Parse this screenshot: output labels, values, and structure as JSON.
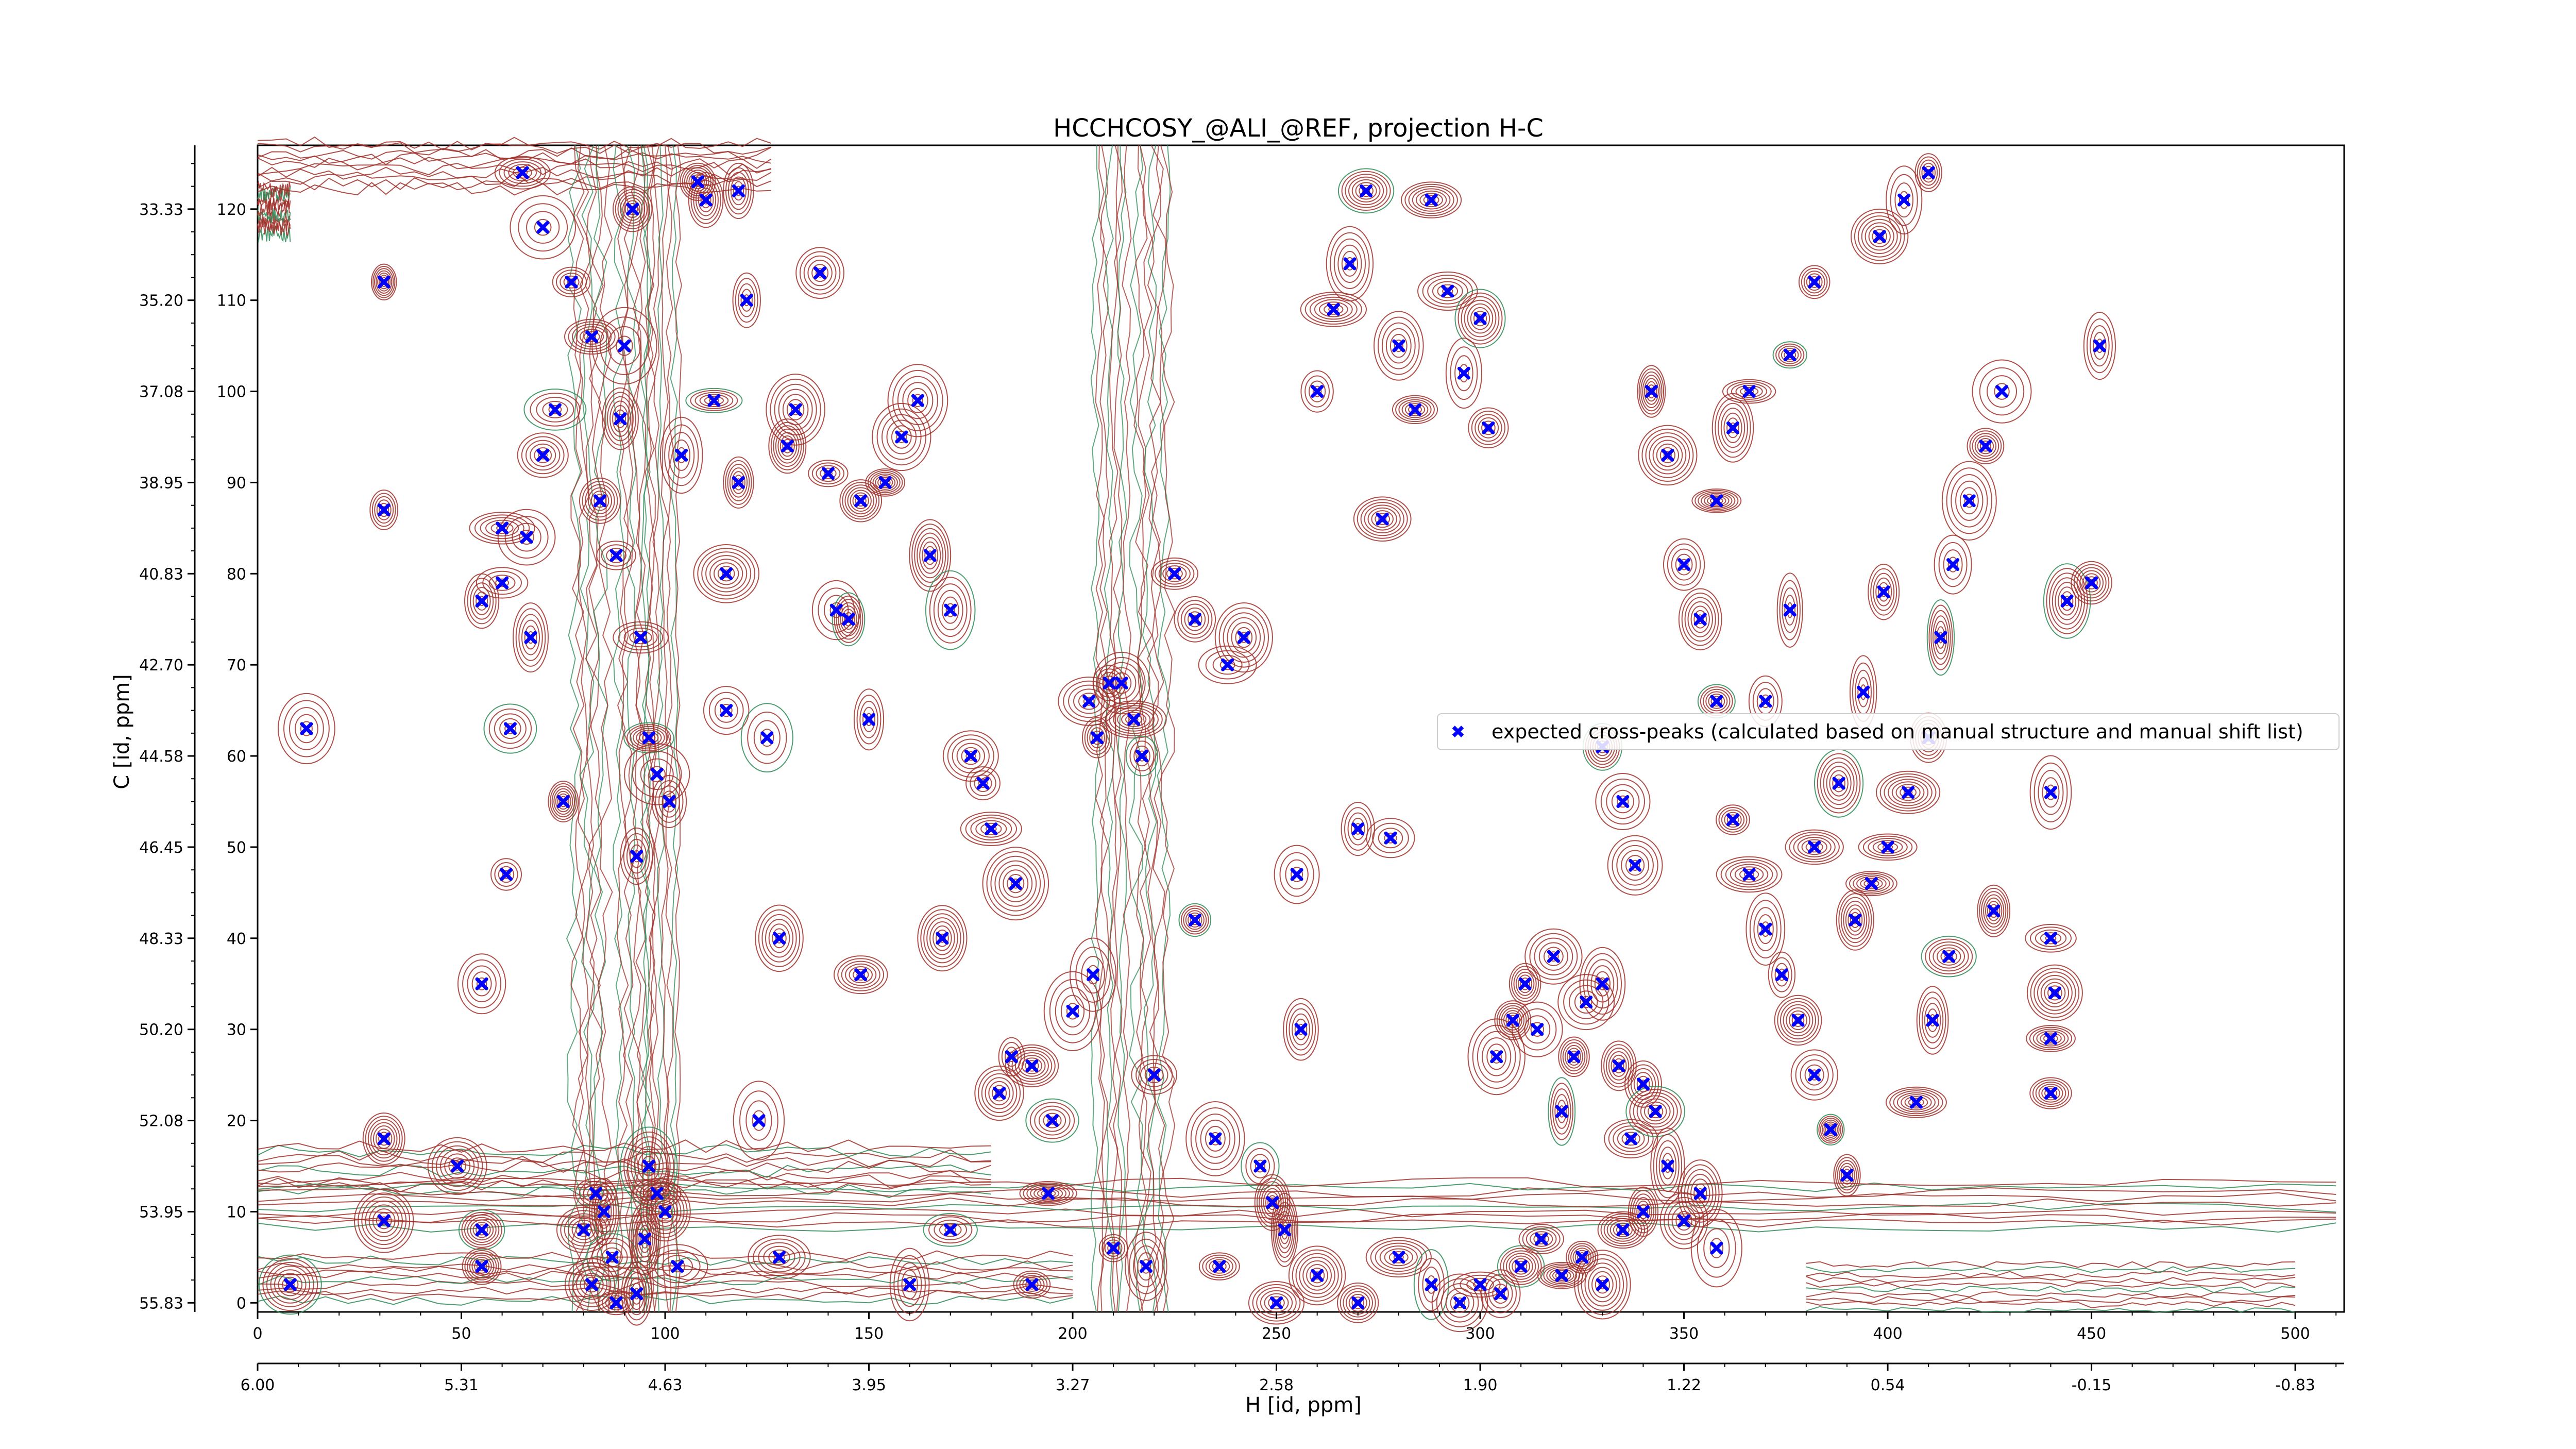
{
  "chart_data": {
    "type": "scatter",
    "title": "HCCHCOSY_@ALI_@REF, projection H-C",
    "xlabel": "H [id, ppm]",
    "ylabel": "C [id, ppm]",
    "xlim": [
      0,
      512
    ],
    "ylim": [
      -1,
      127
    ],
    "x_ticks": [
      0,
      50,
      100,
      150,
      200,
      250,
      300,
      350,
      400,
      450,
      500
    ],
    "x_tick_labels": [
      "0",
      "50",
      "100",
      "150",
      "200",
      "250",
      "300",
      "350",
      "400",
      "450",
      "500"
    ],
    "x2_ticks": [
      0,
      28,
      56,
      84,
      112,
      140,
      168,
      196,
      224,
      252,
      280
    ],
    "x2_tick_labels": [
      "6.00",
      "5.31",
      "4.63",
      "3.95",
      "3.27",
      "2.58",
      "1.90",
      "1.22",
      "0.54",
      "-0.15",
      "-0.83"
    ],
    "x2_tick_positions": [
      0,
      50,
      100,
      150,
      200,
      250,
      300,
      350,
      400,
      450,
      500
    ],
    "y_ticks": [
      0,
      10,
      20,
      30,
      40,
      50,
      60,
      70,
      80,
      90,
      100,
      110,
      120
    ],
    "y_tick_labels": [
      "0",
      "10",
      "20",
      "30",
      "40",
      "50",
      "60",
      "70",
      "80",
      "90",
      "100",
      "110",
      "120"
    ],
    "y2_tick_labels": [
      "55.83",
      "53.95",
      "52.08",
      "50.20",
      "48.33",
      "46.45",
      "44.58",
      "42.70",
      "40.83",
      "38.95",
      "37.08",
      "35.20",
      "33.33"
    ],
    "y2_tick_positions": [
      0,
      10,
      20,
      30,
      40,
      50,
      60,
      70,
      80,
      90,
      100,
      110,
      120
    ],
    "grid": false,
    "legend_position": "center-right",
    "series": [
      {
        "name": "expected cross-peaks (calculated based on manual structure and manual shift list)",
        "color": "#0000ff",
        "marker": "x",
        "points": [
          [
            8,
            2
          ],
          [
            12,
            63
          ],
          [
            31,
            112
          ],
          [
            31,
            87
          ],
          [
            31,
            18
          ],
          [
            31,
            9
          ],
          [
            49,
            15
          ],
          [
            55,
            8
          ],
          [
            55,
            4
          ],
          [
            55,
            77
          ],
          [
            61,
            47
          ],
          [
            55,
            35
          ],
          [
            60,
            85
          ],
          [
            60,
            79
          ],
          [
            62,
            63
          ],
          [
            65,
            124
          ],
          [
            70,
            118
          ],
          [
            75,
            55
          ],
          [
            66,
            84
          ],
          [
            70,
            93
          ],
          [
            67,
            73
          ],
          [
            73,
            98
          ],
          [
            77,
            112
          ],
          [
            84,
            88
          ],
          [
            82,
            106
          ],
          [
            83,
            12
          ],
          [
            80,
            8
          ],
          [
            85,
            10
          ],
          [
            87,
            5
          ],
          [
            82,
            2
          ],
          [
            89,
            97
          ],
          [
            90,
            105
          ],
          [
            88,
            82
          ],
          [
            92,
            120
          ],
          [
            94,
            73
          ],
          [
            96,
            62
          ],
          [
            98,
            58
          ],
          [
            93,
            49
          ],
          [
            88,
            0
          ],
          [
            93,
            1
          ],
          [
            95,
            7
          ],
          [
            98,
            12
          ],
          [
            96,
            15
          ],
          [
            100,
            10
          ],
          [
            103,
            4
          ],
          [
            101,
            55
          ],
          [
            104,
            93
          ],
          [
            108,
            123
          ],
          [
            110,
            121
          ],
          [
            112,
            99
          ],
          [
            115,
            80
          ],
          [
            118,
            122
          ],
          [
            115,
            65
          ],
          [
            118,
            90
          ],
          [
            120,
            110
          ],
          [
            123,
            20
          ],
          [
            125,
            62
          ],
          [
            128,
            5
          ],
          [
            130,
            94
          ],
          [
            132,
            98
          ],
          [
            138,
            113
          ],
          [
            140,
            91
          ],
          [
            142,
            76
          ],
          [
            145,
            75
          ],
          [
            148,
            88
          ],
          [
            150,
            64
          ],
          [
            154,
            90
          ],
          [
            158,
            95
          ],
          [
            162,
            99
          ],
          [
            165,
            82
          ],
          [
            170,
            76
          ],
          [
            175,
            60
          ],
          [
            178,
            57
          ],
          [
            180,
            52
          ],
          [
            182,
            23
          ],
          [
            185,
            27
          ],
          [
            190,
            26
          ],
          [
            195,
            20
          ],
          [
            200,
            32
          ],
          [
            204,
            66
          ],
          [
            206,
            62
          ],
          [
            209,
            68
          ],
          [
            212,
            68
          ],
          [
            215,
            64
          ],
          [
            217,
            60
          ],
          [
            220,
            25
          ],
          [
            225,
            80
          ],
          [
            230,
            75
          ],
          [
            235,
            18
          ],
          [
            238,
            70
          ],
          [
            242,
            73
          ],
          [
            246,
            15
          ],
          [
            249,
            11
          ],
          [
            252,
            8
          ],
          [
            256,
            30
          ],
          [
            260,
            100
          ],
          [
            264,
            109
          ],
          [
            268,
            114
          ],
          [
            272,
            122
          ],
          [
            276,
            86
          ],
          [
            280,
            105
          ],
          [
            284,
            98
          ],
          [
            288,
            121
          ],
          [
            292,
            111
          ],
          [
            296,
            102
          ],
          [
            300,
            108
          ],
          [
            302,
            96
          ],
          [
            304,
            27
          ],
          [
            308,
            31
          ],
          [
            311,
            35
          ],
          [
            314,
            30
          ],
          [
            318,
            38
          ],
          [
            320,
            21
          ],
          [
            323,
            27
          ],
          [
            326,
            33
          ],
          [
            330,
            35
          ],
          [
            334,
            26
          ],
          [
            337,
            18
          ],
          [
            340,
            24
          ],
          [
            343,
            21
          ],
          [
            346,
            15
          ],
          [
            350,
            9
          ],
          [
            354,
            12
          ],
          [
            358,
            6
          ],
          [
            300,
            2
          ],
          [
            305,
            1
          ],
          [
            310,
            4
          ],
          [
            315,
            7
          ],
          [
            320,
            3
          ],
          [
            325,
            5
          ],
          [
            330,
            2
          ],
          [
            335,
            8
          ],
          [
            340,
            10
          ],
          [
            330,
            61
          ],
          [
            335,
            55
          ],
          [
            338,
            48
          ],
          [
            342,
            100
          ],
          [
            346,
            93
          ],
          [
            350,
            81
          ],
          [
            354,
            75
          ],
          [
            358,
            66
          ],
          [
            362,
            53
          ],
          [
            366,
            47
          ],
          [
            370,
            41
          ],
          [
            374,
            36
          ],
          [
            378,
            31
          ],
          [
            382,
            25
          ],
          [
            386,
            19
          ],
          [
            390,
            14
          ],
          [
            392,
            42
          ],
          [
            396,
            46
          ],
          [
            400,
            50
          ],
          [
            405,
            56
          ],
          [
            410,
            62
          ],
          [
            413,
            73
          ],
          [
            416,
            81
          ],
          [
            420,
            88
          ],
          [
            424,
            94
          ],
          [
            428,
            100
          ],
          [
            407,
            22
          ],
          [
            411,
            31
          ],
          [
            415,
            38
          ],
          [
            426,
            43
          ],
          [
            440,
            56
          ],
          [
            440,
            40
          ],
          [
            441,
            34
          ],
          [
            440,
            29
          ],
          [
            440,
            23
          ],
          [
            444,
            77
          ],
          [
            452,
            105
          ],
          [
            450,
            79
          ],
          [
            410,
            124
          ],
          [
            404,
            121
          ],
          [
            398,
            117
          ],
          [
            382,
            112
          ],
          [
            376,
            104
          ],
          [
            366,
            100
          ],
          [
            362,
            96
          ],
          [
            358,
            88
          ],
          [
            376,
            76
          ],
          [
            370,
            66
          ],
          [
            382,
            50
          ],
          [
            388,
            57
          ],
          [
            394,
            67
          ],
          [
            399,
            78
          ],
          [
            250,
            0
          ],
          [
            260,
            3
          ],
          [
            270,
            0
          ],
          [
            280,
            5
          ],
          [
            288,
            2
          ],
          [
            295,
            0
          ],
          [
            236,
            4
          ],
          [
            218,
            4
          ],
          [
            210,
            6
          ],
          [
            194,
            12
          ],
          [
            190,
            2
          ],
          [
            170,
            8
          ],
          [
            160,
            2
          ],
          [
            128,
            40
          ],
          [
            148,
            36
          ],
          [
            168,
            40
          ],
          [
            186,
            46
          ],
          [
            205,
            36
          ],
          [
            230,
            42
          ],
          [
            255,
            47
          ],
          [
            270,
            52
          ],
          [
            278,
            51
          ]
        ]
      }
    ],
    "contour_colors": {
      "positive": "#a0302a",
      "negative": "#2e8b57"
    }
  }
}
